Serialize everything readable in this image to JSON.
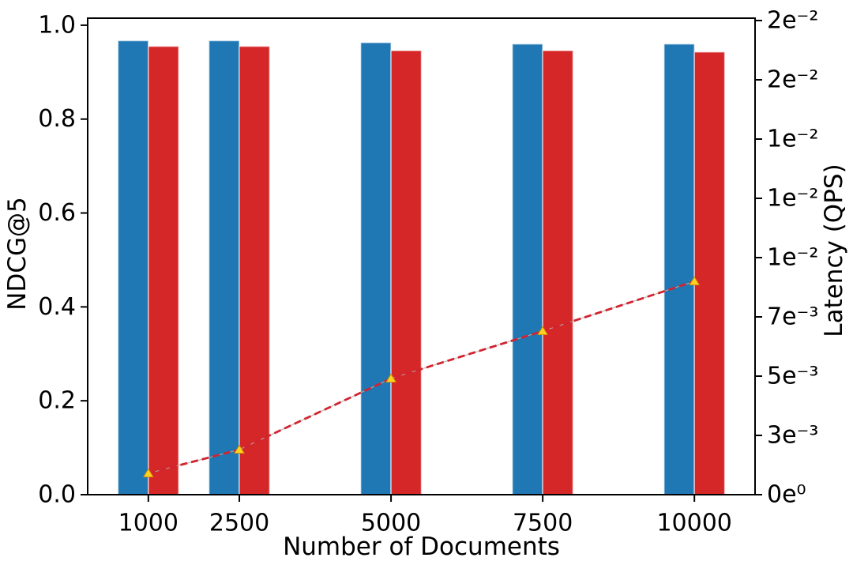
{
  "chart_data": {
    "type": "bar",
    "title": "",
    "xlabel": "Number of Documents",
    "ylabel_left": "NDCG@5",
    "ylabel_right": "Latency (QPS)",
    "categories": [
      1000,
      2500,
      5000,
      7500,
      10000
    ],
    "x_tick_labels": [
      "1000",
      "2500",
      "5000",
      "7500",
      "10000"
    ],
    "xlim": [
      0,
      11000
    ],
    "ylim_left": [
      0,
      1.015
    ],
    "ylim_right": [
      0,
      0.0201
    ],
    "grid": false,
    "legend": "none",
    "bar_width_units": 500,
    "series": [
      {
        "name": "series-blue",
        "axis": "left",
        "color": "#1f77b4",
        "offset_units": -500,
        "values": [
          0.967,
          0.967,
          0.963,
          0.96,
          0.96
        ]
      },
      {
        "name": "series-red",
        "axis": "left",
        "color": "#d62728",
        "offset_units": 0,
        "values": [
          0.955,
          0.955,
          0.946,
          0.946,
          0.943
        ]
      }
    ],
    "line_series": {
      "name": "latency-line",
      "axis": "right",
      "style": "dashed",
      "line_color": "#d22330",
      "underlay_line_color": "#b4aa9e",
      "marker": "triangle-up",
      "marker_fill": "#ffd21f",
      "marker_edge": "#d4930a",
      "values": [
        0.0009,
        0.0019,
        0.0049,
        0.0069,
        0.009
      ]
    },
    "y_ticks_left": {
      "values": [
        0.0,
        0.2,
        0.4,
        0.6,
        0.8,
        1.0
      ],
      "labels": [
        "0.0",
        "0.2",
        "0.4",
        "0.6",
        "0.8",
        "1.0"
      ]
    },
    "y_ticks_right": {
      "values": [
        0,
        0.0025,
        0.005,
        0.0075,
        0.01,
        0.0125,
        0.015,
        0.0175,
        0.02
      ],
      "labels": [
        "0e⁰",
        "3e⁻³",
        "5e⁻³",
        "7e⁻³",
        "1e⁻²",
        "1e⁻²",
        "1e⁻²",
        "2e⁻²",
        "2e⁻²"
      ]
    },
    "axis_color": "#000000",
    "tick_font_size": 30,
    "label_font_size": 31
  }
}
